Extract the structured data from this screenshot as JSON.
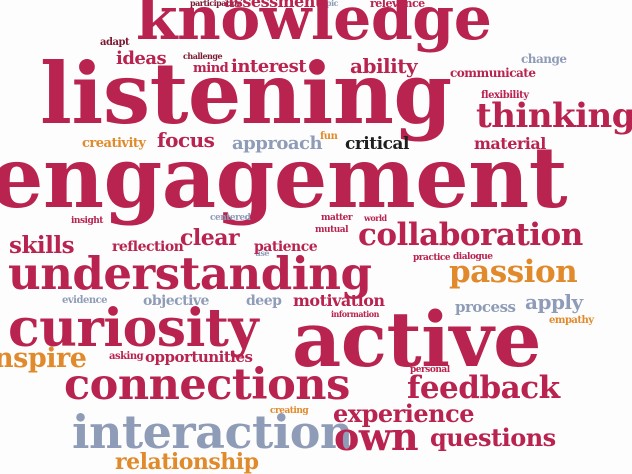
{
  "colors": {
    "red": "#b8234f",
    "dark": "#7a1a33",
    "orange": "#e08a2c",
    "blue": "#8f9cb8",
    "black": "#1f1f1f"
  },
  "words": [
    {
      "key": "participation",
      "text": "participation",
      "color": "dark"
    },
    {
      "key": "assessment",
      "text": "assessment",
      "color": "red"
    },
    {
      "key": "topic",
      "text": "topic",
      "color": "blue"
    },
    {
      "key": "relevance",
      "text": "relevance",
      "color": "red"
    },
    {
      "key": "knowledge",
      "text": "knowledge",
      "color": "red"
    },
    {
      "key": "adapt",
      "text": "adapt",
      "color": "dark"
    },
    {
      "key": "challenge",
      "text": "challenge",
      "color": "dark"
    },
    {
      "key": "ideas",
      "text": "ideas",
      "color": "red"
    },
    {
      "key": "mind",
      "text": "mind",
      "color": "red"
    },
    {
      "key": "interest",
      "text": "interest",
      "color": "red"
    },
    {
      "key": "ability",
      "text": "ability",
      "color": "red"
    },
    {
      "key": "change",
      "text": "change",
      "color": "blue"
    },
    {
      "key": "communicate",
      "text": "communicate",
      "color": "red"
    },
    {
      "key": "listening",
      "text": "listening",
      "color": "red"
    },
    {
      "key": "flexibility",
      "text": "flexibility",
      "color": "red"
    },
    {
      "key": "thinking",
      "text": "thinking",
      "color": "red"
    },
    {
      "key": "creativity",
      "text": "creativity",
      "color": "orange"
    },
    {
      "key": "focus",
      "text": "focus",
      "color": "red"
    },
    {
      "key": "approach",
      "text": "approach",
      "color": "blue"
    },
    {
      "key": "fun",
      "text": "fun",
      "color": "orange"
    },
    {
      "key": "critical",
      "text": "critical",
      "color": "black"
    },
    {
      "key": "material",
      "text": "material",
      "color": "red"
    },
    {
      "key": "engagement",
      "text": "engagement",
      "color": "red"
    },
    {
      "key": "insight",
      "text": "insight",
      "color": "red"
    },
    {
      "key": "centered",
      "text": "centered",
      "color": "blue"
    },
    {
      "key": "matter",
      "text": "matter",
      "color": "red"
    },
    {
      "key": "world",
      "text": "world",
      "color": "red"
    },
    {
      "key": "mutual",
      "text": "mutual",
      "color": "red"
    },
    {
      "key": "skills",
      "text": "skills",
      "color": "red"
    },
    {
      "key": "reflection",
      "text": "reflection",
      "color": "red"
    },
    {
      "key": "clear",
      "text": "clear",
      "color": "red"
    },
    {
      "key": "use",
      "text": "use",
      "color": "blue"
    },
    {
      "key": "patience",
      "text": "patience",
      "color": "red"
    },
    {
      "key": "collaboration",
      "text": "collaboration",
      "color": "red"
    },
    {
      "key": "practice",
      "text": "practice",
      "color": "red"
    },
    {
      "key": "dialogue",
      "text": "dialogue",
      "color": "red"
    },
    {
      "key": "understanding",
      "text": "understanding",
      "color": "red"
    },
    {
      "key": "passion",
      "text": "passion",
      "color": "orange"
    },
    {
      "key": "evidence",
      "text": "evidence",
      "color": "blue"
    },
    {
      "key": "objective",
      "text": "objective",
      "color": "blue"
    },
    {
      "key": "deep",
      "text": "deep",
      "color": "blue"
    },
    {
      "key": "motivation",
      "text": "motivation",
      "color": "red"
    },
    {
      "key": "information",
      "text": "information",
      "color": "red"
    },
    {
      "key": "process",
      "text": "process",
      "color": "blue"
    },
    {
      "key": "apply",
      "text": "apply",
      "color": "blue"
    },
    {
      "key": "curiosity",
      "text": "curiosity",
      "color": "red"
    },
    {
      "key": "active",
      "text": "active",
      "color": "red"
    },
    {
      "key": "empathy",
      "text": "empathy",
      "color": "orange"
    },
    {
      "key": "inspire",
      "text": "nspire",
      "color": "orange"
    },
    {
      "key": "asking",
      "text": "asking",
      "color": "red"
    },
    {
      "key": "opportunities",
      "text": "opportunities",
      "color": "red"
    },
    {
      "key": "personal",
      "text": "personal",
      "color": "red"
    },
    {
      "key": "connections",
      "text": "connections",
      "color": "red"
    },
    {
      "key": "feedback",
      "text": "feedback",
      "color": "red"
    },
    {
      "key": "creating",
      "text": "creating",
      "color": "orange"
    },
    {
      "key": "experience",
      "text": "experience",
      "color": "red"
    },
    {
      "key": "interaction",
      "text": "interaction",
      "color": "blue"
    },
    {
      "key": "own",
      "text": "own",
      "color": "red"
    },
    {
      "key": "questions",
      "text": "questions",
      "color": "red"
    },
    {
      "key": "relationship",
      "text": "relationship",
      "color": "orange"
    }
  ]
}
